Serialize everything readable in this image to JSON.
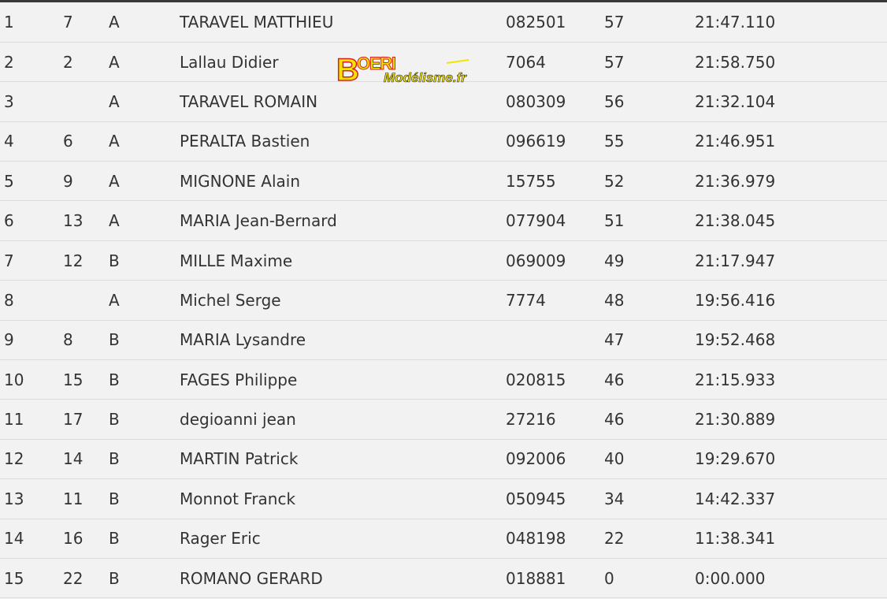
{
  "logo": {
    "text_main": "BOERI",
    "text_sub": "Modélisme.fr",
    "colors": {
      "yellow": "#f5e400",
      "red": "#d81e1e"
    }
  },
  "rows": [
    [
      "1",
      "7",
      "A",
      "TARAVEL MATTHIEU",
      "082501",
      "57",
      "21:47.110"
    ],
    [
      "2",
      "2",
      "A",
      "Lallau Didier",
      "7064",
      "57",
      "21:58.750"
    ],
    [
      "3",
      "",
      "A",
      "TARAVEL ROMAIN",
      "080309",
      "56",
      "21:32.104"
    ],
    [
      "4",
      "6",
      "A",
      "PERALTA Bastien",
      "096619",
      "55",
      "21:46.951"
    ],
    [
      "5",
      "9",
      "A",
      "MIGNONE Alain",
      "15755",
      "52",
      "21:36.979"
    ],
    [
      "6",
      "13",
      "A",
      "MARIA Jean-Bernard",
      "077904",
      "51",
      "21:38.045"
    ],
    [
      "7",
      "12",
      "B",
      "MILLE Maxime",
      "069009",
      "49",
      "21:17.947"
    ],
    [
      "8",
      "",
      "A",
      "Michel Serge",
      "7774",
      "48",
      "19:56.416"
    ],
    [
      "9",
      "8",
      "B",
      "MARIA Lysandre",
      "",
      "47",
      "19:52.468"
    ],
    [
      "10",
      "15",
      "B",
      "FAGES Philippe",
      "020815",
      "46",
      "21:15.933"
    ],
    [
      "11",
      "17",
      "B",
      "degioanni jean",
      "27216",
      "46",
      "21:30.889"
    ],
    [
      "12",
      "14",
      "B",
      "MARTIN Patrick",
      "092006",
      "40",
      "19:29.670"
    ],
    [
      "13",
      "11",
      "B",
      "Monnot Franck",
      "050945",
      "34",
      "14:42.337"
    ],
    [
      "14",
      "16",
      "B",
      "Rager Eric",
      "048198",
      "22",
      "11:38.341"
    ],
    [
      "15",
      "22",
      "B",
      "ROMANO GERARD",
      "018881",
      "0",
      "0:00.000"
    ]
  ]
}
